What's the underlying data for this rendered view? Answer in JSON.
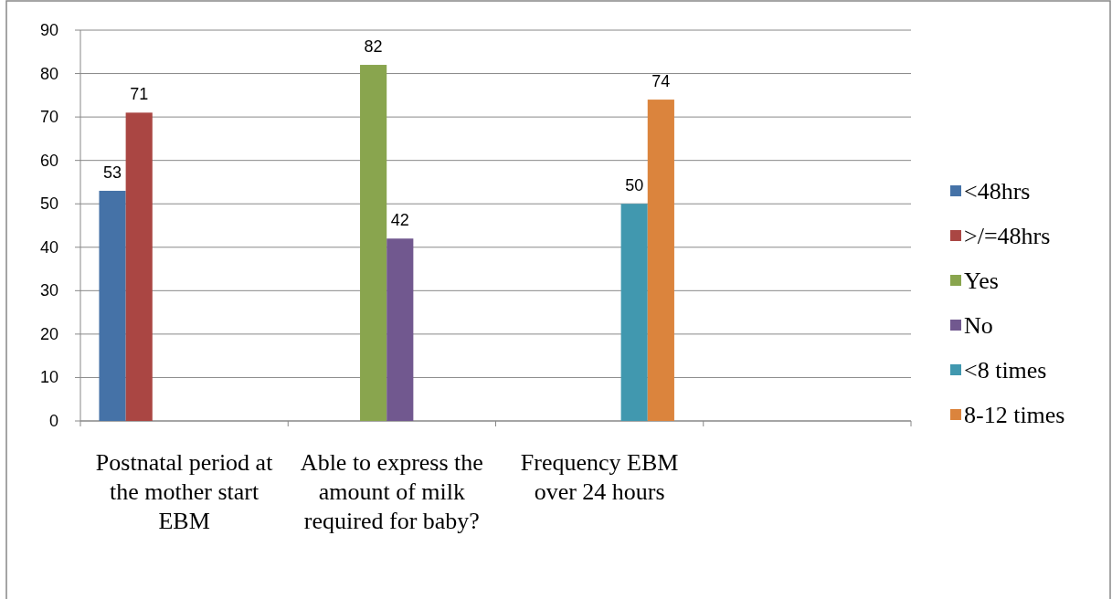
{
  "chart_data": {
    "type": "bar",
    "categories": [
      "Postnatal period at the mother start EBM",
      "Able to express the amount of milk required for baby?",
      "Frequency EBM over 24 hours",
      null
    ],
    "series": [
      {
        "name": "<48hrs",
        "color": "#4572a7",
        "values": [
          53,
          null,
          null,
          null
        ]
      },
      {
        "name": ">/=48hrs",
        "color": "#aa4643",
        "values": [
          71,
          null,
          null,
          null
        ]
      },
      {
        "name": "Yes",
        "color": "#89a54e",
        "values": [
          null,
          82,
          null,
          null
        ]
      },
      {
        "name": "No",
        "color": "#71588f",
        "values": [
          null,
          42,
          null,
          null
        ]
      },
      {
        "name": "<8 times",
        "color": "#4198af",
        "values": [
          null,
          null,
          50,
          null
        ]
      },
      {
        "name": "8-12 times",
        "color": "#db843d",
        "values": [
          null,
          null,
          74,
          null
        ]
      }
    ],
    "ylim": [
      0,
      90
    ],
    "yticks": [
      0,
      10,
      20,
      30,
      40,
      50,
      60,
      70,
      80,
      90
    ],
    "grid": "y",
    "legend": "right",
    "data_labels": true
  }
}
